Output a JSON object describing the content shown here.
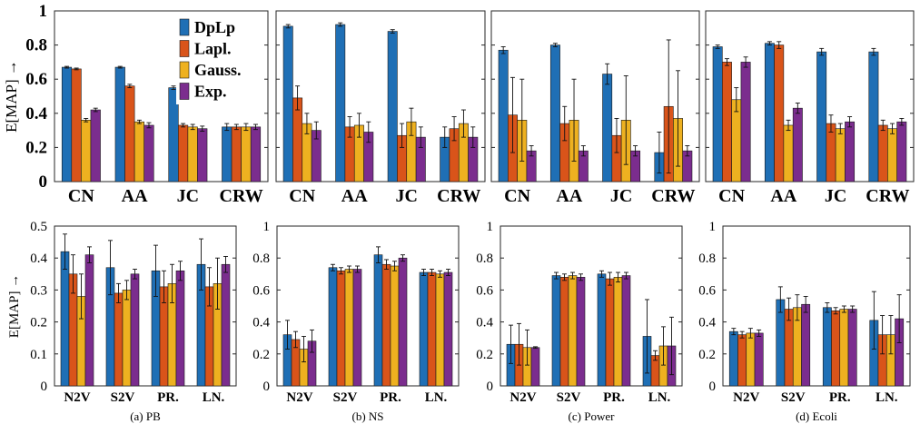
{
  "colors": {
    "DpLp": "#1f6fb5",
    "Lapl.": "#d9541a",
    "Gauss.": "#eeb120",
    "Exp.": "#7b2d8e"
  },
  "legend": [
    "DpLp",
    "Lapl.",
    "Gauss.",
    "Exp."
  ],
  "ylabel": "E[MAP] →",
  "captions": [
    "(a) PB",
    "(b) NS",
    "(c) Power",
    "(d) Ecoli"
  ],
  "chart_data": [
    {
      "type": "bar",
      "row": "top",
      "dataset": "PB",
      "categories": [
        "CN",
        "AA",
        "JC",
        "CRW"
      ],
      "ylim": [
        0,
        1
      ],
      "yticks": [
        "0",
        "0.2",
        "0.4",
        "0.6",
        "0.8",
        "1"
      ],
      "legend_position": "top-center",
      "series": [
        {
          "name": "DpLp",
          "values": [
            0.67,
            0.67,
            0.55,
            0.32
          ],
          "err": [
            0.005,
            0.005,
            0.01,
            0.02
          ]
        },
        {
          "name": "Lapl.",
          "values": [
            0.66,
            0.56,
            0.33,
            0.32
          ],
          "err": [
            0.005,
            0.01,
            0.01,
            0.015
          ]
        },
        {
          "name": "Gauss.",
          "values": [
            0.36,
            0.35,
            0.32,
            0.32
          ],
          "err": [
            0.01,
            0.01,
            0.015,
            0.02
          ]
        },
        {
          "name": "Exp.",
          "values": [
            0.42,
            0.33,
            0.31,
            0.32
          ],
          "err": [
            0.01,
            0.015,
            0.015,
            0.015
          ]
        }
      ]
    },
    {
      "type": "bar",
      "row": "top",
      "dataset": "NS",
      "categories": [
        "CN",
        "AA",
        "JC",
        "CRW"
      ],
      "ylim": [
        0,
        1
      ],
      "series": [
        {
          "name": "DpLp",
          "values": [
            0.91,
            0.92,
            0.88,
            0.26
          ],
          "err": [
            0.01,
            0.01,
            0.01,
            0.06
          ]
        },
        {
          "name": "Lapl.",
          "values": [
            0.49,
            0.32,
            0.27,
            0.31
          ],
          "err": [
            0.07,
            0.06,
            0.07,
            0.07
          ]
        },
        {
          "name": "Gauss.",
          "values": [
            0.34,
            0.33,
            0.35,
            0.34
          ],
          "err": [
            0.06,
            0.07,
            0.08,
            0.08
          ]
        },
        {
          "name": "Exp.",
          "values": [
            0.3,
            0.29,
            0.26,
            0.26
          ],
          "err": [
            0.05,
            0.06,
            0.06,
            0.06
          ]
        }
      ]
    },
    {
      "type": "bar",
      "row": "top",
      "dataset": "Power",
      "categories": [
        "CN",
        "AA",
        "JC",
        "CRW"
      ],
      "ylim": [
        0,
        1
      ],
      "series": [
        {
          "name": "DpLp",
          "values": [
            0.77,
            0.8,
            0.63,
            0.17
          ],
          "err": [
            0.02,
            0.01,
            0.06,
            0.12
          ]
        },
        {
          "name": "Lapl.",
          "values": [
            0.39,
            0.34,
            0.27,
            0.44
          ],
          "err": [
            0.22,
            0.1,
            0.1,
            0.39
          ]
        },
        {
          "name": "Gauss.",
          "values": [
            0.36,
            0.36,
            0.36,
            0.37
          ],
          "err": [
            0.24,
            0.24,
            0.26,
            0.28
          ]
        },
        {
          "name": "Exp.",
          "values": [
            0.18,
            0.18,
            0.18,
            0.18
          ],
          "err": [
            0.03,
            0.03,
            0.03,
            0.03
          ]
        }
      ]
    },
    {
      "type": "bar",
      "row": "top",
      "dataset": "Ecoli",
      "categories": [
        "CN",
        "AA",
        "JC",
        "CRW"
      ],
      "ylim": [
        0,
        1
      ],
      "series": [
        {
          "name": "DpLp",
          "values": [
            0.79,
            0.81,
            0.76,
            0.76
          ],
          "err": [
            0.01,
            0.01,
            0.02,
            0.02
          ]
        },
        {
          "name": "Lapl.",
          "values": [
            0.7,
            0.8,
            0.34,
            0.33
          ],
          "err": [
            0.02,
            0.02,
            0.05,
            0.03
          ]
        },
        {
          "name": "Gauss.",
          "values": [
            0.48,
            0.33,
            0.31,
            0.31
          ],
          "err": [
            0.07,
            0.03,
            0.03,
            0.03
          ]
        },
        {
          "name": "Exp.",
          "values": [
            0.7,
            0.43,
            0.35,
            0.35
          ],
          "err": [
            0.03,
            0.03,
            0.03,
            0.02
          ]
        }
      ]
    },
    {
      "type": "bar",
      "row": "bottom",
      "dataset": "PB",
      "categories": [
        "N2V",
        "S2V",
        "PR.",
        "LN."
      ],
      "ylim": [
        0,
        0.5
      ],
      "yticks": [
        "0",
        "0.1",
        "0.2",
        "0.3",
        "0.4",
        "0.5"
      ],
      "series": [
        {
          "name": "DpLp",
          "values": [
            0.42,
            0.37,
            0.36,
            0.38
          ],
          "err": [
            0.055,
            0.085,
            0.08,
            0.08
          ]
        },
        {
          "name": "Lapl.",
          "values": [
            0.35,
            0.29,
            0.31,
            0.31
          ],
          "err": [
            0.06,
            0.03,
            0.05,
            0.06
          ]
        },
        {
          "name": "Gauss.",
          "values": [
            0.28,
            0.3,
            0.32,
            0.32
          ],
          "err": [
            0.07,
            0.03,
            0.06,
            0.08
          ]
        },
        {
          "name": "Exp.",
          "values": [
            0.41,
            0.35,
            0.36,
            0.38
          ],
          "err": [
            0.025,
            0.015,
            0.03,
            0.025
          ]
        }
      ]
    },
    {
      "type": "bar",
      "row": "bottom",
      "dataset": "NS",
      "categories": [
        "N2V",
        "S2V",
        "PR.",
        "LN."
      ],
      "ylim": [
        0,
        1
      ],
      "yticks": [
        "0",
        "0.2",
        "0.4",
        "0.6",
        "0.8",
        "1"
      ],
      "series": [
        {
          "name": "DpLp",
          "values": [
            0.32,
            0.74,
            0.82,
            0.71
          ],
          "err": [
            0.09,
            0.02,
            0.05,
            0.02
          ]
        },
        {
          "name": "Lapl.",
          "values": [
            0.29,
            0.72,
            0.76,
            0.71
          ],
          "err": [
            0.05,
            0.02,
            0.03,
            0.02
          ]
        },
        {
          "name": "Gauss.",
          "values": [
            0.23,
            0.73,
            0.75,
            0.7
          ],
          "err": [
            0.08,
            0.02,
            0.03,
            0.02
          ]
        },
        {
          "name": "Exp.",
          "values": [
            0.28,
            0.73,
            0.8,
            0.71
          ],
          "err": [
            0.07,
            0.02,
            0.02,
            0.02
          ]
        }
      ]
    },
    {
      "type": "bar",
      "row": "bottom",
      "dataset": "Power",
      "categories": [
        "N2V",
        "S2V",
        "PR.",
        "LN."
      ],
      "ylim": [
        0,
        1
      ],
      "yticks": [
        "0",
        "0.2",
        "0.4",
        "0.6",
        "0.8",
        "1"
      ],
      "series": [
        {
          "name": "DpLp",
          "values": [
            0.26,
            0.69,
            0.7,
            0.31
          ],
          "err": [
            0.12,
            0.02,
            0.02,
            0.23
          ]
        },
        {
          "name": "Lapl.",
          "values": [
            0.26,
            0.68,
            0.67,
            0.19
          ],
          "err": [
            0.13,
            0.02,
            0.04,
            0.03
          ]
        },
        {
          "name": "Gauss.",
          "values": [
            0.24,
            0.69,
            0.68,
            0.25
          ],
          "err": [
            0.11,
            0.02,
            0.03,
            0.12
          ]
        },
        {
          "name": "Exp.",
          "values": [
            0.24,
            0.68,
            0.69,
            0.25
          ],
          "err": [
            0.005,
            0.02,
            0.02,
            0.18
          ]
        }
      ]
    },
    {
      "type": "bar",
      "row": "bottom",
      "dataset": "Ecoli",
      "categories": [
        "N2V",
        "S2V",
        "PR.",
        "LN."
      ],
      "ylim": [
        0,
        1
      ],
      "yticks": [
        "0",
        "0.2",
        "0.4",
        "0.6",
        "0.8",
        "1"
      ],
      "series": [
        {
          "name": "DpLp",
          "values": [
            0.34,
            0.54,
            0.49,
            0.41
          ],
          "err": [
            0.02,
            0.08,
            0.03,
            0.18
          ]
        },
        {
          "name": "Lapl.",
          "values": [
            0.32,
            0.48,
            0.47,
            0.32
          ],
          "err": [
            0.02,
            0.07,
            0.02,
            0.12
          ]
        },
        {
          "name": "Gauss.",
          "values": [
            0.33,
            0.49,
            0.48,
            0.32
          ],
          "err": [
            0.03,
            0.08,
            0.02,
            0.12
          ]
        },
        {
          "name": "Exp.",
          "values": [
            0.33,
            0.51,
            0.48,
            0.42
          ],
          "err": [
            0.02,
            0.05,
            0.02,
            0.15
          ]
        }
      ]
    }
  ]
}
